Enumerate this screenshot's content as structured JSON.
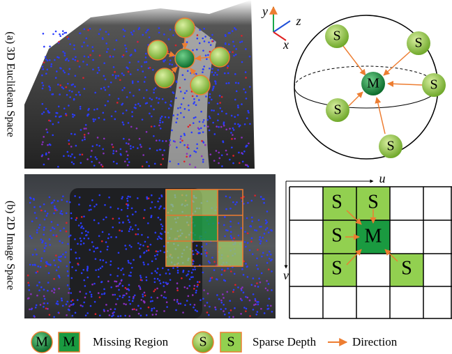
{
  "side_labels": [
    "(a) 3D Euclidean Space",
    "(b) 2D Image Space"
  ],
  "axes_3d": {
    "y": "y",
    "z": "z",
    "x": "x"
  },
  "sphere": {
    "center": "M",
    "neighbors": [
      "S",
      "S",
      "S",
      "S",
      "S"
    ]
  },
  "grid": {
    "u": "u",
    "v": "v",
    "center": "M",
    "neighbors": [
      "S",
      "S",
      "S",
      "S",
      "S"
    ]
  },
  "legend": {
    "missing_symbols": [
      "M",
      "M"
    ],
    "missing_label": "Missing Region",
    "sparse_symbols": [
      "S",
      "S"
    ],
    "sparse_label": "Sparse Depth",
    "direction_label": "Direction"
  }
}
